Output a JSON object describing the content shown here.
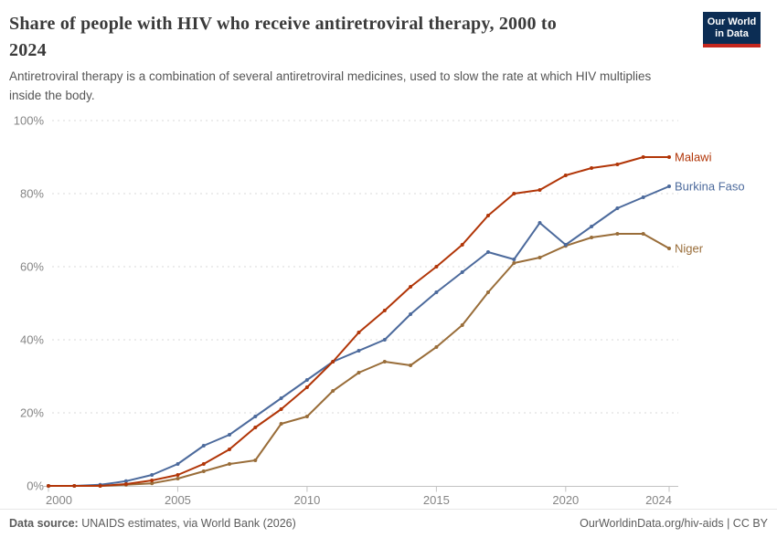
{
  "header": {
    "title": "Share of people with HIV who receive antiretroviral therapy, 2000 to 2024",
    "title_lines": [
      "Share of people with HIV who receive antiretroviral therapy, 2000 to",
      "2024"
    ],
    "subtitle": "Antiretroviral therapy is a combination of several antiretroviral medicines, used to slow the rate at which HIV multiplies inside the body.",
    "subtitle_lines": [
      "Antiretroviral therapy is a combination of several antiretroviral medicines, used to slow the rate at which HIV multiplies",
      "inside the body."
    ],
    "logo": {
      "line1": "Our World",
      "line2": "in Data",
      "bg_color": "#0c2d54",
      "stripe_color": "#c5271e"
    }
  },
  "chart_data": {
    "type": "line",
    "title": "Share of people with HIV who receive antiretroviral therapy, 2000 to 2024",
    "x": [
      2000,
      2001,
      2002,
      2003,
      2004,
      2005,
      2006,
      2007,
      2008,
      2009,
      2010,
      2011,
      2012,
      2013,
      2014,
      2015,
      2016,
      2017,
      2018,
      2019,
      2020,
      2021,
      2022,
      2023,
      2024
    ],
    "series": [
      {
        "name": "Niger",
        "color": "#996D39",
        "values": [
          0,
          0,
          0,
          0.3,
          0.7,
          2,
          4,
          6,
          7,
          17,
          19,
          26,
          31,
          34,
          33,
          38,
          44,
          53,
          61,
          62.5,
          65.7,
          68,
          69,
          69,
          65
        ]
      },
      {
        "name": "Burkina Faso",
        "color": "#4C6A9C",
        "values": [
          0,
          0,
          0.3,
          1.3,
          3,
          6,
          11,
          14,
          19,
          24,
          29,
          34,
          37,
          40,
          47,
          53,
          58.5,
          64,
          62,
          72,
          66,
          71,
          76,
          79,
          82
        ]
      },
      {
        "name": "Malawi",
        "color": "#B13507",
        "values": [
          0,
          0,
          0,
          0.5,
          1.5,
          3,
          6,
          10,
          16,
          21,
          27,
          34,
          42,
          48,
          54.5,
          60,
          66,
          74,
          80,
          81,
          85,
          87,
          88,
          90,
          90
        ]
      }
    ],
    "xlabel": "",
    "ylabel": "",
    "ylim": [
      0,
      100
    ],
    "yticks": [
      0,
      20,
      40,
      60,
      80,
      100
    ],
    "ytick_suffix": "%",
    "xticks": [
      2000,
      2005,
      2010,
      2015,
      2020,
      2024
    ],
    "grid": "horizontal-dashed",
    "legend_position": "right-end-labels",
    "tick_label_color": "#858585",
    "grid_color": "#d9d9d9",
    "axis_color": "#c2c2c2"
  },
  "footer": {
    "source_label": "Data source:",
    "source_text": " UNAIDS estimates, via World Bank (2026)",
    "right_text": "OurWorldinData.org/hiv-aids | CC BY"
  }
}
